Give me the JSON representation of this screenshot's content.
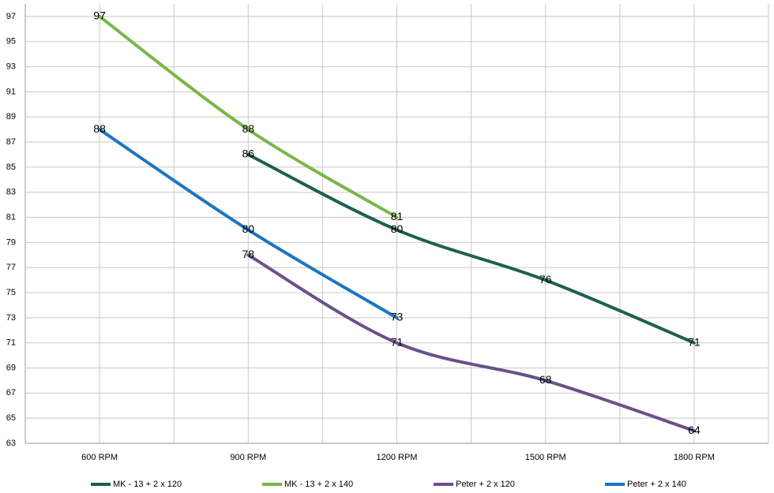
{
  "chart_data": {
    "type": "line",
    "categories": [
      "600 RPM",
      "900 RPM",
      "1200 RPM",
      "1500 RPM",
      "1800 RPM"
    ],
    "series": [
      {
        "name": "MK - 13 + 2 x 120",
        "color": "#1e5e52",
        "values": [
          null,
          86,
          80,
          76,
          71
        ]
      },
      {
        "name": "MK - 13 + 2 x 140",
        "color": "#7ab648",
        "values": [
          97,
          88,
          81,
          null,
          null
        ]
      },
      {
        "name": "Peter + 2 x 120",
        "color": "#6a5189",
        "values": [
          null,
          78,
          71,
          68,
          64
        ]
      },
      {
        "name": "Peter + 2 x 140",
        "color": "#1b75c2",
        "values": [
          88,
          80,
          73,
          null,
          null
        ]
      }
    ],
    "ylim": [
      63,
      98
    ],
    "yticks": [
      63,
      65,
      67,
      69,
      71,
      73,
      75,
      77,
      79,
      81,
      83,
      85,
      87,
      89,
      91,
      93,
      95,
      97
    ],
    "grid": true,
    "smooth": true,
    "legend": "bottom"
  }
}
